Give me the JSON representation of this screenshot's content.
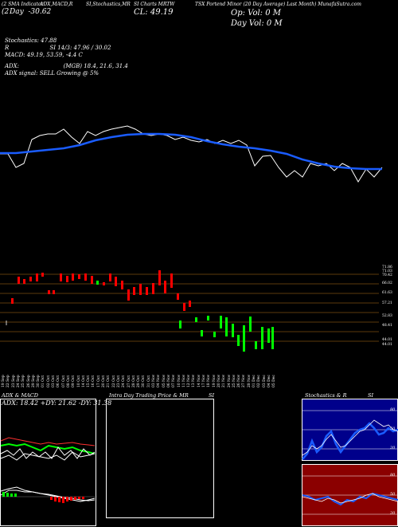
{
  "header": {
    "col1": "(2 SMA Indicator",
    "col2": "ADX,MACD,R",
    "col3": "SI,Stochastics,MR",
    "col4": "SI Charts MRTW",
    "col5": "TSX Portend Minor (20 Day Average) Last Month) MunafaSutra.com",
    "sub_left": "Day  -30.62",
    "sub_left_big": "(2",
    "cl": "CL: 49.19"
  },
  "right_info": {
    "op": "Op: Vol: 0  M",
    "day": "Day Vol: 0  M"
  },
  "indicators": {
    "stochastics": "Stochastics: 47.88",
    "rsi_line": "R                       SI 14/3: 47.96  / 30.02",
    "macd": "MACD: 49.19, 53.59, -4.4  C",
    "adx": "ADX:                         (MGB) 18.4, 21.6, 31.4",
    "adx_signal": "ADX  signal: SELL Growing @ 5%"
  },
  "price_levels": [
    "71.86",
    "71.03",
    "70.42",
    "66.02",
    "61.63",
    "57.21",
    "52.83",
    "48.41",
    "44.01",
    "44.01"
  ],
  "dates": [
    "19 Sep",
    "22 Sep",
    "23 Sep",
    "24 Sep",
    "25 Sep",
    "26 Sep",
    "29 Sep",
    "30 Sep",
    "01 Oct",
    "02 Oct",
    "03 Oct",
    "06 Oct",
    "07 Oct",
    "08 Oct",
    "09 Oct",
    "10 Oct",
    "14 Oct",
    "15 Oct",
    "16 Oct",
    "17 Oct",
    "20 Oct",
    "21 Oct",
    "22 Oct",
    "23 Oct",
    "24 Oct",
    "27 Oct",
    "28 Oct",
    "29 Oct",
    "30 Oct",
    "31 Oct",
    "03 Nov",
    "04 Nov",
    "05 Nov",
    "06 Nov",
    "07 Nov",
    "10 Nov",
    "11 Nov",
    "12 Nov",
    "13 Nov",
    "14 Nov",
    "17 Nov",
    "18 Nov",
    "19 Nov",
    "20 Nov",
    "21 Nov",
    "24 Nov",
    "25 Nov",
    "26 Nov",
    "27 Nov",
    "28 Nov",
    "01 Dec",
    "02 Dec",
    "03 Dec",
    "04 Dec",
    "05 Dec"
  ],
  "panels": {
    "adx_title": "ADX  & MACD",
    "adx_values": "ADX: 18.42  +DY: 21.62  -DY: 31.38",
    "intraday_title": "Intra  Day Trading Price  & MR",
    "intraday_suffix": "SI",
    "stoch_title": "Stochastics & R",
    "stoch_suffix": "SI",
    "stoch_levels": [
      "80",
      "50",
      "20"
    ],
    "rsi_levels": [
      "80",
      "50",
      "20"
    ]
  },
  "colors": {
    "background": "#000000",
    "sma": "#1a5cff",
    "up": "#00ff00",
    "down": "#ff0000",
    "grid": "#b8741a",
    "stoch_bg": "#00008b",
    "rsi_bg": "#8b0000"
  }
}
